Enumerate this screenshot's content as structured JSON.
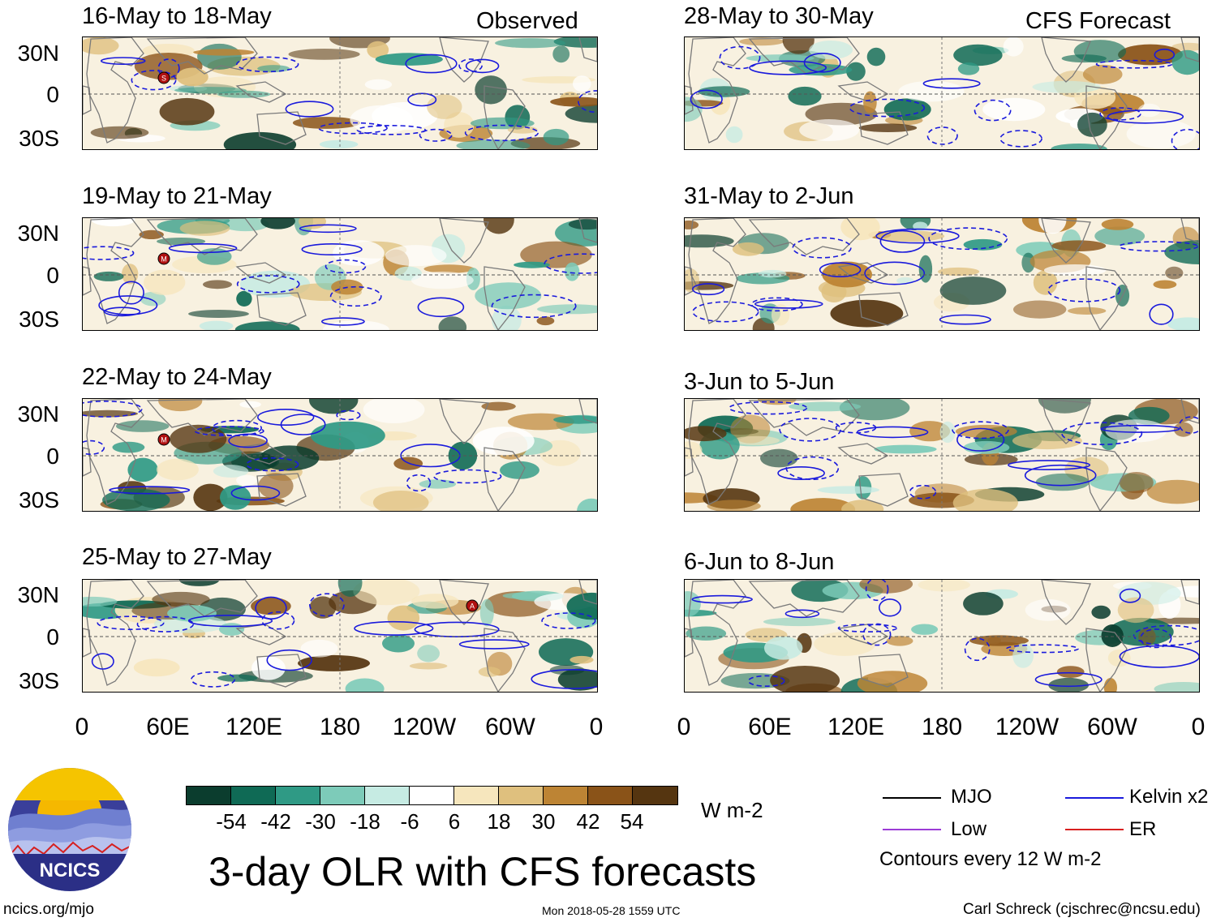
{
  "panels": [
    {
      "title": "16-May to 18-May",
      "tag": "Observed"
    },
    {
      "title": "28-May to 30-May",
      "tag": "CFS Forecast"
    },
    {
      "title": "19-May to 21-May",
      "tag": ""
    },
    {
      "title": "31-May to 2-Jun",
      "tag": ""
    },
    {
      "title": "22-May to 24-May",
      "tag": ""
    },
    {
      "title": "3-Jun to 5-Jun",
      "tag": ""
    },
    {
      "title": "25-May to 27-May",
      "tag": ""
    },
    {
      "title": "6-Jun to 8-Jun",
      "tag": ""
    }
  ],
  "lat_labels": [
    "30N",
    "0",
    "30S"
  ],
  "lon_labels": [
    "0",
    "60E",
    "120E",
    "180",
    "120W",
    "60W",
    "0"
  ],
  "colorbar": {
    "values": [
      "-54",
      "-42",
      "-30",
      "-18",
      "-6",
      "6",
      "18",
      "30",
      "42",
      "54"
    ],
    "colors": [
      "#0b3d2e",
      "#0f6a55",
      "#2f9a85",
      "#7dcbb9",
      "#c6ebe3",
      "#ffffff",
      "#f6e6bd",
      "#dfc07e",
      "#bd8434",
      "#8a5318",
      "#553510"
    ],
    "units": "W m-2"
  },
  "title": "3-day OLR with CFS forecasts",
  "legend": {
    "mjo": "MJO",
    "kelvin": "Kelvin x2",
    "low": "Low",
    "er": "ER",
    "contours": "Contours every 12 W m-2",
    "colors": {
      "mjo": "#000000",
      "kelvin": "#1a1adc",
      "low": "#9b3bd6",
      "er": "#d81f1f"
    }
  },
  "logo": {
    "text": "NCICS"
  },
  "footer": {
    "url": "ncics.org/mjo",
    "timestamp": "Mon 2018-05-28 1559 UTC",
    "author": "Carl Schreck (cjschrec@ncsu.edu)"
  },
  "storm_markers": [
    {
      "panel": 0,
      "letter": "S"
    },
    {
      "panel": 2,
      "letter": "M"
    },
    {
      "panel": 4,
      "letter": "M"
    },
    {
      "panel": 6,
      "letter": "A"
    }
  ]
}
